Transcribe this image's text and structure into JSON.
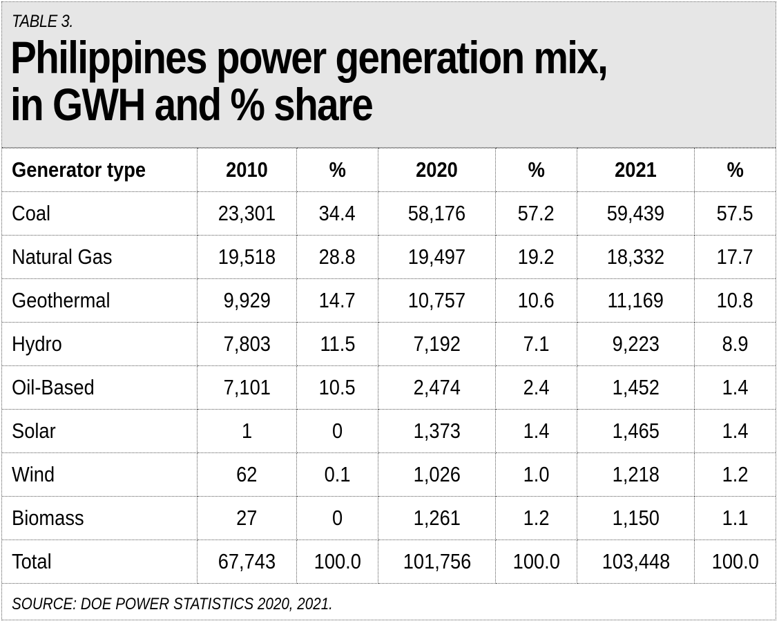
{
  "label": "TABLE 3.",
  "title_line1": "Philippines power generation mix,",
  "title_line2": "in GWH and % share",
  "headers": [
    "Generator type",
    "2010",
    "%",
    "2020",
    "%",
    "2021",
    "%"
  ],
  "rows": [
    [
      "Coal",
      "23,301",
      "34.4",
      "58,176",
      "57.2",
      "59,439",
      "57.5"
    ],
    [
      "Natural Gas",
      "19,518",
      "28.8",
      "19,497",
      "19.2",
      "18,332",
      "17.7"
    ],
    [
      "Geothermal",
      "9,929",
      "14.7",
      "10,757",
      "10.6",
      "11,169",
      "10.8"
    ],
    [
      "Hydro",
      "7,803",
      "11.5",
      "7,192",
      "7.1",
      "9,223",
      "8.9"
    ],
    [
      "Oil-Based",
      "7,101",
      "10.5",
      "2,474",
      "2.4",
      "1,452",
      "1.4"
    ],
    [
      "Solar",
      "1",
      "0",
      "1,373",
      "1.4",
      "1,465",
      "1.4"
    ],
    [
      "Wind",
      "62",
      "0.1",
      "1,026",
      "1.0",
      "1,218",
      "1.2"
    ],
    [
      "Biomass",
      "27",
      "0",
      "1,261",
      "1.2",
      "1,150",
      "1.1"
    ],
    [
      "Total",
      "67,743",
      "100.0",
      "101,756",
      "100.0",
      "103,448",
      "100.0"
    ]
  ],
  "source": "SOURCE: DOE POWER STATISTICS 2020, 2021."
}
